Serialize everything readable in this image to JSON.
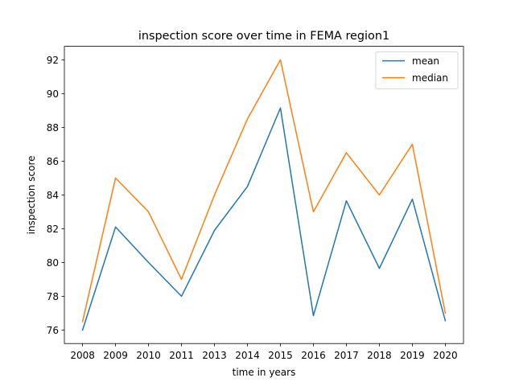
{
  "chart_data": {
    "type": "line",
    "title": "inspection score over time in FEMA region1",
    "xlabel": "time in years",
    "ylabel": "inspection score",
    "x": [
      2008,
      2009,
      2010,
      2011,
      2013,
      2014,
      2015,
      2016,
      2017,
      2018,
      2019,
      2020
    ],
    "x_tick_labels": [
      "2008",
      "2009",
      "2010",
      "2011",
      "2013",
      "2014",
      "2015",
      "2016",
      "2017",
      "2018",
      "2019",
      "2020"
    ],
    "y_ticks": [
      76,
      78,
      80,
      82,
      84,
      86,
      88,
      90,
      92
    ],
    "y_tick_labels": [
      "76",
      "78",
      "80",
      "82",
      "84",
      "86",
      "88",
      "90",
      "92"
    ],
    "ylim": [
      75.2,
      92.8
    ],
    "grid": false,
    "legend_position": "top-right",
    "series": [
      {
        "name": "mean",
        "color": "#1f77b4",
        "values": [
          76.0,
          82.1,
          80.0,
          78.0,
          81.9,
          84.5,
          89.15,
          76.85,
          83.65,
          79.65,
          83.75,
          76.55
        ]
      },
      {
        "name": "median",
        "color": "#ff7f0e",
        "values": [
          76.5,
          85.0,
          83.0,
          79.0,
          84.0,
          88.5,
          92.0,
          83.0,
          86.5,
          84.0,
          87.0,
          77.0
        ]
      }
    ]
  }
}
